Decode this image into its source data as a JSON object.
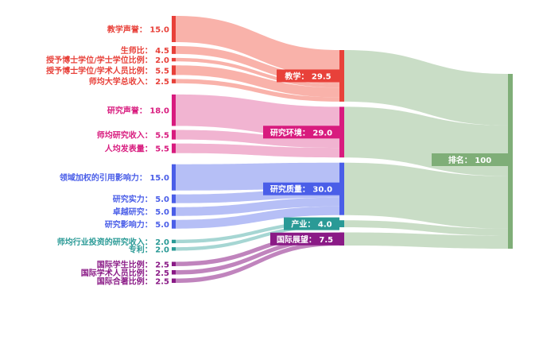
{
  "chart_data": {
    "type": "sankey",
    "title": "",
    "total": {
      "label": "排名： 100",
      "value": 100,
      "color": "#7fae78"
    },
    "groups": [
      {
        "name": "教学",
        "label": "教学： 29.5",
        "value": 29.5,
        "color": "#e8413a",
        "flow_color": "#f8a59b",
        "sources": [
          {
            "label": "教学声誉： 15.0",
            "value": 15.0
          },
          {
            "label": "生师比： 4.5",
            "value": 4.5
          },
          {
            "label": "授予博士学位/学士学位比例： 2.0",
            "value": 2.0
          },
          {
            "label": "授予博士学位/学术人员比例： 5.5",
            "value": 5.5
          },
          {
            "label": "师均大学总收入： 2.5",
            "value": 2.5
          }
        ]
      },
      {
        "name": "研究环境",
        "label": "研究环境： 29.0",
        "value": 29.0,
        "color": "#d81b7e",
        "flow_color": "#eea7c9",
        "sources": [
          {
            "label": "研究声誉： 18.0",
            "value": 18.0
          },
          {
            "label": "师均研究收入： 5.5",
            "value": 5.5
          },
          {
            "label": "人均发表量： 5.5",
            "value": 5.5
          }
        ]
      },
      {
        "name": "研究质量",
        "label": "研究质量： 30.0",
        "value": 30.0,
        "color": "#4a5ee8",
        "flow_color": "#a9b4f5",
        "sources": [
          {
            "label": "领域加权的引用影响力： 15.0",
            "value": 15.0
          },
          {
            "label": "研究实力： 5.0",
            "value": 5.0
          },
          {
            "label": "卓越研究： 5.0",
            "value": 5.0
          },
          {
            "label": "研究影响力： 5.0",
            "value": 5.0
          }
        ]
      },
      {
        "name": "产业",
        "label": "产业： 4.0",
        "value": 4.0,
        "color": "#2a9a96",
        "flow_color": "#97cfcb",
        "sources": [
          {
            "label": "师均行业投资的研究收入： 2.0",
            "value": 2.0
          },
          {
            "label": "专利： 2.0",
            "value": 2.0
          }
        ]
      },
      {
        "name": "国际展望",
        "label": "国际展望： 7.5",
        "value": 7.5,
        "color": "#8a1a86",
        "flow_color": "#b56fb2",
        "sources": [
          {
            "label": "国际学生比例： 2.5",
            "value": 2.5
          },
          {
            "label": "国际学术人员比例： 2.5",
            "value": 2.5
          },
          {
            "label": "国际合著比例： 2.5",
            "value": 2.5
          }
        ]
      }
    ]
  }
}
